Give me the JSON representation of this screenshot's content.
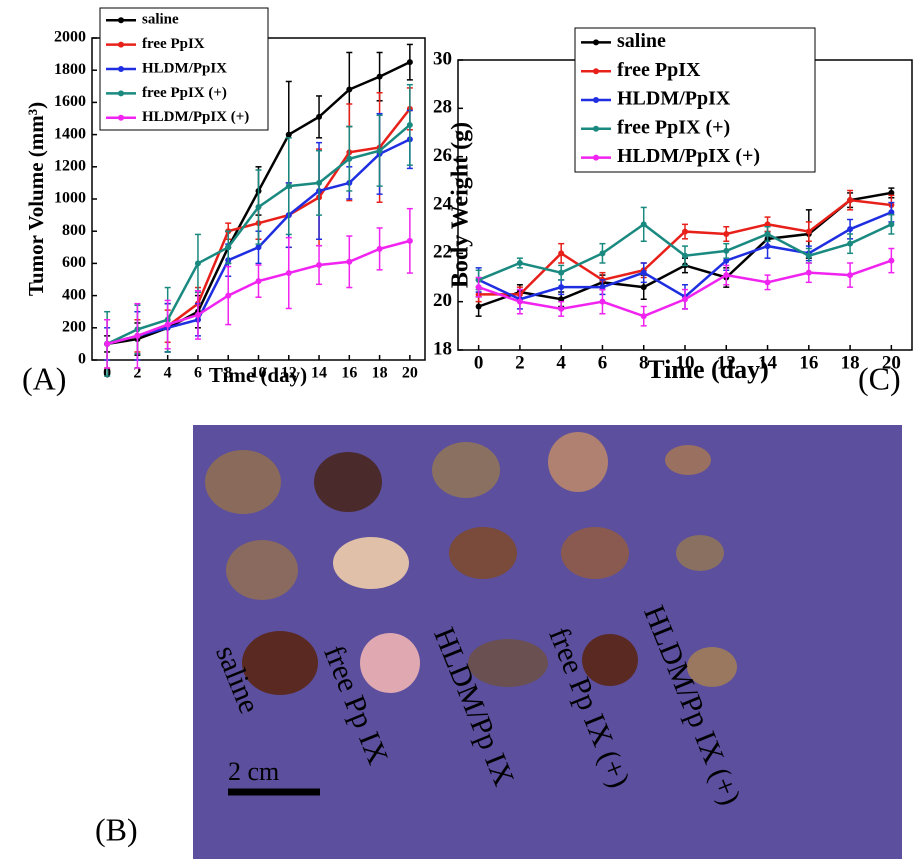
{
  "chart_data": [
    {
      "type": "line",
      "panel_label": "(A)",
      "x_label": "Time (day)",
      "y_label": "Tumor Volume (mm³)",
      "x": [
        0,
        2,
        4,
        6,
        8,
        10,
        12,
        14,
        16,
        18,
        20
      ],
      "xlim": [
        -1,
        21
      ],
      "xticks": [
        0,
        2,
        4,
        6,
        8,
        10,
        12,
        14,
        16,
        18,
        20
      ],
      "ylim": [
        0,
        2000
      ],
      "yticks": [
        0,
        200,
        400,
        600,
        800,
        1000,
        1200,
        1400,
        1600,
        1800,
        2000
      ],
      "legend": "upper left",
      "series": [
        {
          "name": "saline",
          "color": "#000000",
          "values": [
            100,
            130,
            200,
            300,
            700,
            1050,
            1400,
            1510,
            1680,
            1760,
            1850
          ],
          "errors": [
            50,
            100,
            150,
            100,
            100,
            150,
            330,
            130,
            230,
            150,
            110
          ]
        },
        {
          "name": "free PpIX",
          "color": "#e8201a",
          "values": [
            100,
            150,
            210,
            350,
            800,
            850,
            900,
            1010,
            1290,
            1320,
            1560
          ],
          "errors": [
            150,
            100,
            100,
            100,
            50,
            100,
            200,
            300,
            300,
            340,
            130
          ]
        },
        {
          "name": "HLDM/PpIX",
          "color": "#1f2ee0",
          "values": [
            100,
            150,
            200,
            250,
            620,
            700,
            900,
            1050,
            1100,
            1280,
            1370
          ],
          "errors": [
            100,
            150,
            150,
            100,
            100,
            100,
            200,
            300,
            100,
            250,
            180
          ]
        },
        {
          "name": "free PpIX (+)",
          "color": "#1a8a80",
          "values": [
            100,
            190,
            250,
            600,
            700,
            950,
            1080,
            1100,
            1250,
            1300,
            1460
          ],
          "errors": [
            200,
            150,
            200,
            180,
            100,
            230,
            300,
            200,
            200,
            220,
            250
          ]
        },
        {
          "name": "HLDM/PpIX (+)",
          "color": "#f023f0",
          "values": [
            100,
            150,
            220,
            280,
            400,
            490,
            540,
            590,
            610,
            690,
            740
          ],
          "errors": [
            150,
            200,
            150,
            150,
            180,
            100,
            220,
            120,
            160,
            130,
            200
          ]
        }
      ]
    },
    {
      "type": "line",
      "panel_label": "(C)",
      "x_label": "Time (day)",
      "y_label": "Body Weight (g)",
      "x": [
        0,
        2,
        4,
        6,
        8,
        10,
        12,
        14,
        16,
        18,
        20
      ],
      "xlim": [
        -1,
        21
      ],
      "xticks": [
        0,
        2,
        4,
        6,
        8,
        10,
        12,
        14,
        16,
        18,
        20
      ],
      "ylim": [
        18,
        30
      ],
      "yticks": [
        18,
        20,
        22,
        24,
        26,
        28,
        30
      ],
      "legend": "upper left",
      "series": [
        {
          "name": "saline",
          "color": "#000000",
          "values": [
            19.8,
            20.4,
            20.1,
            20.8,
            20.6,
            21.5,
            21.0,
            22.6,
            22.8,
            24.2,
            24.5
          ],
          "errors": [
            0.4,
            0.3,
            0.3,
            0.3,
            0.5,
            0.3,
            0.4,
            0.3,
            1.0,
            0.3,
            0.2
          ]
        },
        {
          "name": "free PpIX",
          "color": "#e8201a",
          "values": [
            20.3,
            20.3,
            22.0,
            20.9,
            21.3,
            22.9,
            22.8,
            23.2,
            22.9,
            24.2,
            24.0
          ],
          "errors": [
            0.3,
            0.3,
            0.4,
            0.3,
            0.3,
            0.3,
            0.3,
            0.3,
            0.4,
            0.4,
            0.4
          ]
        },
        {
          "name": "HLDM/PpIX",
          "color": "#1f2ee0",
          "values": [
            20.9,
            20.1,
            20.6,
            20.6,
            21.2,
            20.2,
            21.7,
            22.3,
            22.0,
            23.0,
            23.7
          ],
          "errors": [
            0.5,
            0.4,
            0.3,
            0.3,
            0.4,
            0.5,
            0.4,
            0.5,
            0.3,
            0.4,
            0.4
          ]
        },
        {
          "name": "free PpIX (+)",
          "color": "#1a8a80",
          "values": [
            20.9,
            21.6,
            21.2,
            22.0,
            23.2,
            21.9,
            22.1,
            22.8,
            21.9,
            22.4,
            23.2
          ],
          "errors": [
            0.4,
            0.2,
            0.3,
            0.4,
            0.7,
            0.4,
            0.3,
            0.3,
            0.3,
            0.4,
            0.4
          ]
        },
        {
          "name": "HLDM/PpIX (+)",
          "color": "#f023f0",
          "values": [
            20.6,
            20.0,
            19.7,
            20.0,
            19.4,
            20.1,
            21.1,
            20.8,
            21.2,
            21.1,
            21.7
          ],
          "errors": [
            0.4,
            0.5,
            0.3,
            0.5,
            0.4,
            0.4,
            0.4,
            0.3,
            0.4,
            0.5,
            0.5
          ]
        }
      ]
    }
  ],
  "photo": {
    "panel_label": "(B)",
    "labels": [
      "saline",
      "free Pp IX",
      "HLDM/Pp IX",
      "free Pp IX (+)",
      "HLDM/Pp IX (+)"
    ],
    "scale_bar": "2 cm"
  }
}
